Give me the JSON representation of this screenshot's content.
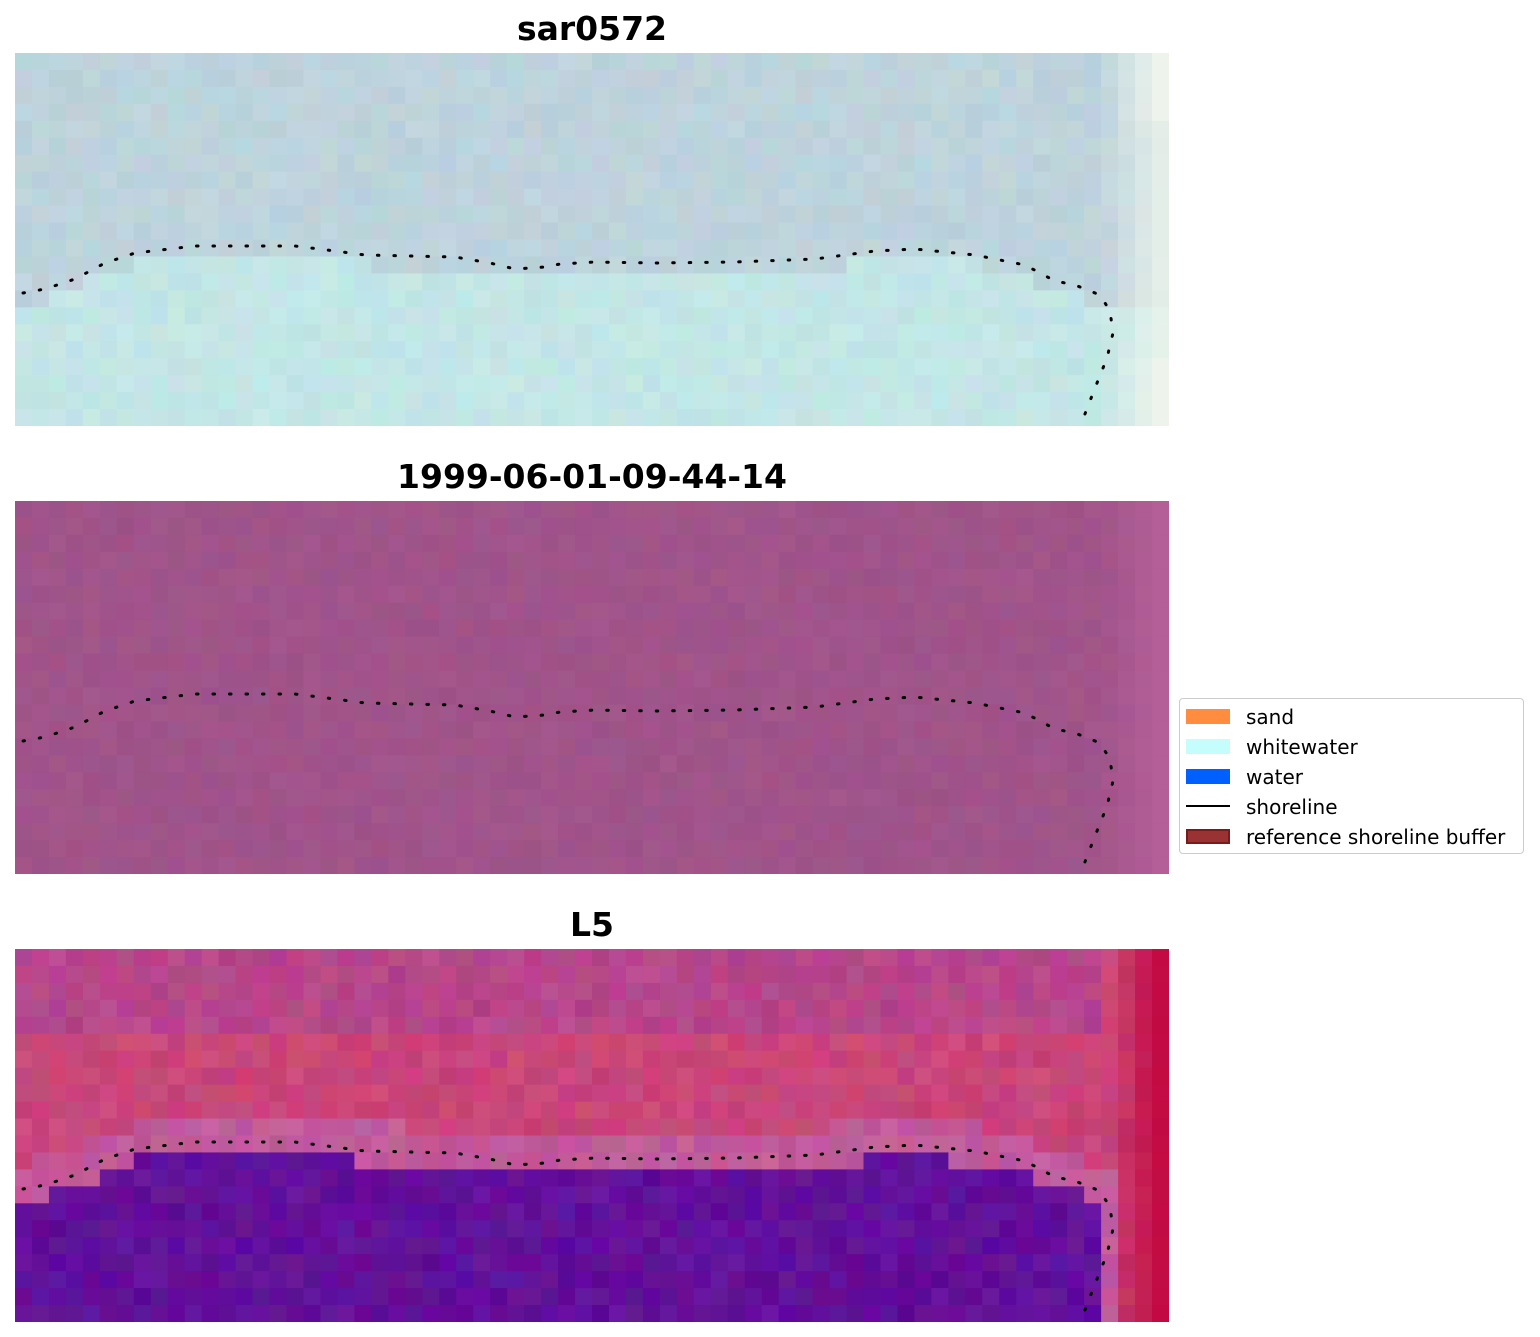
{
  "panels": [
    {
      "title": "sar0572",
      "style": "sar",
      "colors": {
        "base": "#bdd3dc",
        "water": "#c3e6e6",
        "edge": "#eef4ec"
      }
    },
    {
      "title": "1999-06-01-09-44-14",
      "style": "rgb",
      "colors": {
        "base": "#a0548a",
        "edge": "#b45f98"
      }
    },
    {
      "title": "L5",
      "style": "index",
      "colors": {
        "land": "#c94679",
        "band": "#c15b9b",
        "water": "#62109a",
        "edge": "#c1003a"
      }
    }
  ],
  "shoreline": {
    "color": "#000000",
    "style": "dotted"
  },
  "legend": {
    "items": [
      {
        "label": "sand",
        "color": "#ff8c3f",
        "kind": "patch"
      },
      {
        "label": "whitewater",
        "color": "#c5fcfc",
        "kind": "patch"
      },
      {
        "label": "water",
        "color": "#005fff",
        "kind": "patch"
      },
      {
        "label": "shoreline",
        "color": "#000000",
        "kind": "line"
      },
      {
        "label": "reference shoreline buffer",
        "color": "#993333",
        "edge": "#7a1a1a",
        "kind": "patch"
      }
    ]
  }
}
